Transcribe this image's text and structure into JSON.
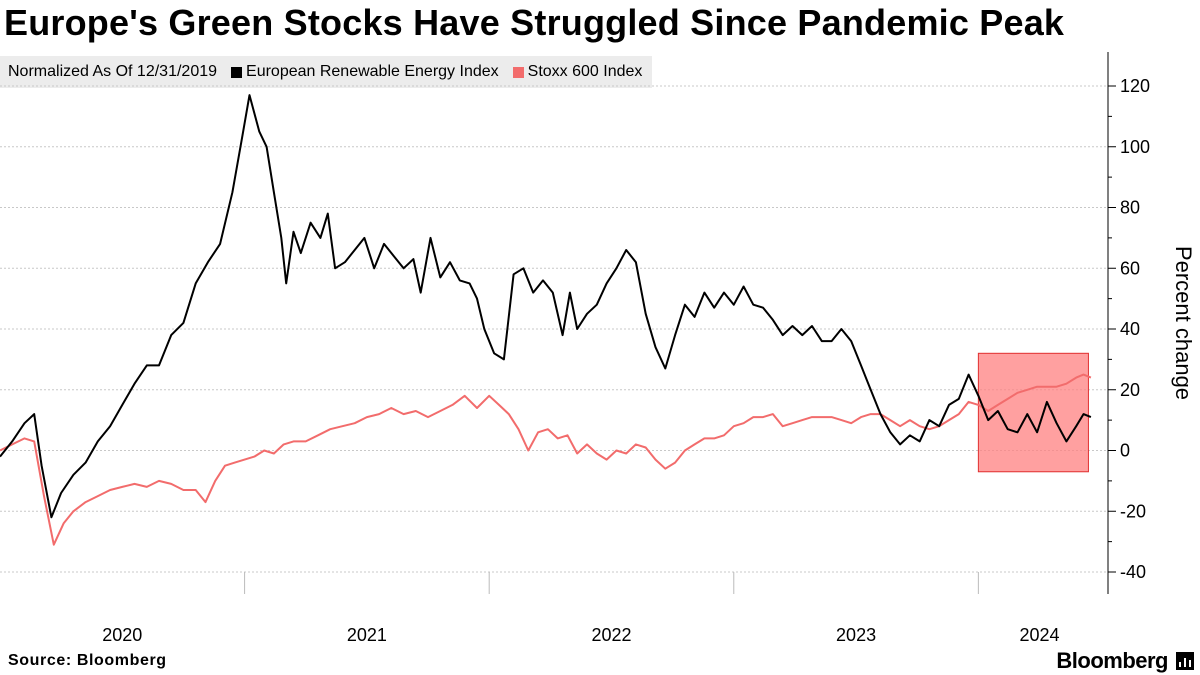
{
  "title": "Europe's Green Stocks Have Struggled Since Pandemic Peak",
  "legend": {
    "note": "Normalized As Of 12/31/2019",
    "items": [
      {
        "label": "European Renewable Energy Index",
        "color": "#000000"
      },
      {
        "label": "Stoxx 600 Index",
        "color": "#f26c6c"
      }
    ]
  },
  "source": "Source: Bloomberg",
  "brand": "Bloomberg",
  "brand_icon": "bloomberg-chart-icon",
  "chart_data": {
    "type": "line",
    "title": "Europe's Green Stocks Have Struggled Since Pandemic Peak",
    "xlabel": "",
    "ylabel": "Percent change",
    "ylim": [
      -40,
      130
    ],
    "yticks": [
      120,
      100,
      80,
      60,
      40,
      20,
      0,
      -20,
      -40
    ],
    "ytick_labels": [
      "120",
      "100",
      "80",
      "60",
      "40",
      "20",
      "0",
      "-20",
      "-40"
    ],
    "xlim": [
      2020.0,
      2024.53
    ],
    "year_boundaries": [
      2021,
      2022,
      2023,
      2024
    ],
    "xtick_labels": [
      {
        "label": "2020",
        "x": 2020.5
      },
      {
        "label": "2021",
        "x": 2021.5
      },
      {
        "label": "2022",
        "x": 2022.5
      },
      {
        "label": "2023",
        "x": 2023.5
      },
      {
        "label": "2024",
        "x": 2024.25
      }
    ],
    "highlight": {
      "x_start": 2024.0,
      "x_end": 2024.45,
      "y_start": -7,
      "y_end": 32,
      "color": "#ff8080"
    },
    "series": [
      {
        "name": "European Renewable Energy Index",
        "color": "#000000",
        "points": [
          [
            2020.0,
            -2
          ],
          [
            2020.05,
            3
          ],
          [
            2020.1,
            9
          ],
          [
            2020.14,
            12
          ],
          [
            2020.17,
            -5
          ],
          [
            2020.21,
            -22
          ],
          [
            2020.25,
            -14
          ],
          [
            2020.3,
            -8
          ],
          [
            2020.35,
            -4
          ],
          [
            2020.4,
            3
          ],
          [
            2020.45,
            8
          ],
          [
            2020.5,
            15
          ],
          [
            2020.55,
            22
          ],
          [
            2020.6,
            28
          ],
          [
            2020.65,
            28
          ],
          [
            2020.7,
            38
          ],
          [
            2020.75,
            42
          ],
          [
            2020.8,
            55
          ],
          [
            2020.85,
            62
          ],
          [
            2020.9,
            68
          ],
          [
            2020.95,
            85
          ],
          [
            2020.99,
            103
          ],
          [
            2021.02,
            117
          ],
          [
            2021.06,
            105
          ],
          [
            2021.09,
            100
          ],
          [
            2021.12,
            85
          ],
          [
            2021.15,
            70
          ],
          [
            2021.17,
            55
          ],
          [
            2021.2,
            72
          ],
          [
            2021.23,
            65
          ],
          [
            2021.27,
            75
          ],
          [
            2021.31,
            70
          ],
          [
            2021.34,
            78
          ],
          [
            2021.37,
            60
          ],
          [
            2021.41,
            62
          ],
          [
            2021.45,
            66
          ],
          [
            2021.49,
            70
          ],
          [
            2021.53,
            60
          ],
          [
            2021.57,
            68
          ],
          [
            2021.61,
            64
          ],
          [
            2021.65,
            60
          ],
          [
            2021.69,
            63
          ],
          [
            2021.72,
            52
          ],
          [
            2021.76,
            70
          ],
          [
            2021.8,
            57
          ],
          [
            2021.84,
            62
          ],
          [
            2021.88,
            56
          ],
          [
            2021.92,
            55
          ],
          [
            2021.95,
            50
          ],
          [
            2021.98,
            40
          ],
          [
            2022.02,
            32
          ],
          [
            2022.06,
            30
          ],
          [
            2022.1,
            58
          ],
          [
            2022.14,
            60
          ],
          [
            2022.18,
            52
          ],
          [
            2022.22,
            56
          ],
          [
            2022.26,
            52
          ],
          [
            2022.3,
            38
          ],
          [
            2022.33,
            52
          ],
          [
            2022.36,
            40
          ],
          [
            2022.4,
            45
          ],
          [
            2022.44,
            48
          ],
          [
            2022.48,
            55
          ],
          [
            2022.52,
            60
          ],
          [
            2022.56,
            66
          ],
          [
            2022.6,
            62
          ],
          [
            2022.64,
            45
          ],
          [
            2022.68,
            34
          ],
          [
            2022.72,
            27
          ],
          [
            2022.76,
            38
          ],
          [
            2022.8,
            48
          ],
          [
            2022.84,
            44
          ],
          [
            2022.88,
            52
          ],
          [
            2022.92,
            47
          ],
          [
            2022.96,
            52
          ],
          [
            2023.0,
            48
          ],
          [
            2023.04,
            54
          ],
          [
            2023.08,
            48
          ],
          [
            2023.12,
            47
          ],
          [
            2023.16,
            43
          ],
          [
            2023.2,
            38
          ],
          [
            2023.24,
            41
          ],
          [
            2023.28,
            38
          ],
          [
            2023.32,
            41
          ],
          [
            2023.36,
            36
          ],
          [
            2023.4,
            36
          ],
          [
            2023.44,
            40
          ],
          [
            2023.48,
            36
          ],
          [
            2023.52,
            28
          ],
          [
            2023.56,
            20
          ],
          [
            2023.6,
            12
          ],
          [
            2023.64,
            6
          ],
          [
            2023.68,
            2
          ],
          [
            2023.72,
            5
          ],
          [
            2023.76,
            3
          ],
          [
            2023.8,
            10
          ],
          [
            2023.84,
            8
          ],
          [
            2023.88,
            15
          ],
          [
            2023.92,
            17
          ],
          [
            2023.96,
            25
          ],
          [
            2024.0,
            18
          ],
          [
            2024.04,
            10
          ],
          [
            2024.08,
            13
          ],
          [
            2024.12,
            7
          ],
          [
            2024.16,
            6
          ],
          [
            2024.2,
            12
          ],
          [
            2024.24,
            6
          ],
          [
            2024.28,
            16
          ],
          [
            2024.32,
            9
          ],
          [
            2024.36,
            3
          ],
          [
            2024.4,
            8
          ],
          [
            2024.43,
            12
          ],
          [
            2024.46,
            11
          ]
        ]
      },
      {
        "name": "Stoxx 600 Index",
        "color": "#f26c6c",
        "points": [
          [
            2020.0,
            0
          ],
          [
            2020.05,
            2
          ],
          [
            2020.1,
            4
          ],
          [
            2020.14,
            3
          ],
          [
            2020.18,
            -15
          ],
          [
            2020.22,
            -31
          ],
          [
            2020.26,
            -24
          ],
          [
            2020.3,
            -20
          ],
          [
            2020.35,
            -17
          ],
          [
            2020.4,
            -15
          ],
          [
            2020.45,
            -13
          ],
          [
            2020.5,
            -12
          ],
          [
            2020.55,
            -11
          ],
          [
            2020.6,
            -12
          ],
          [
            2020.65,
            -10
          ],
          [
            2020.7,
            -11
          ],
          [
            2020.75,
            -13
          ],
          [
            2020.8,
            -13
          ],
          [
            2020.84,
            -17
          ],
          [
            2020.88,
            -10
          ],
          [
            2020.92,
            -5
          ],
          [
            2020.96,
            -4
          ],
          [
            2021.0,
            -3
          ],
          [
            2021.04,
            -2
          ],
          [
            2021.08,
            0
          ],
          [
            2021.12,
            -1
          ],
          [
            2021.16,
            2
          ],
          [
            2021.2,
            3
          ],
          [
            2021.25,
            3
          ],
          [
            2021.3,
            5
          ],
          [
            2021.35,
            7
          ],
          [
            2021.4,
            8
          ],
          [
            2021.45,
            9
          ],
          [
            2021.5,
            11
          ],
          [
            2021.55,
            12
          ],
          [
            2021.6,
            14
          ],
          [
            2021.65,
            12
          ],
          [
            2021.7,
            13
          ],
          [
            2021.75,
            11
          ],
          [
            2021.8,
            13
          ],
          [
            2021.85,
            15
          ],
          [
            2021.9,
            18
          ],
          [
            2021.95,
            14
          ],
          [
            2022.0,
            18
          ],
          [
            2022.04,
            15
          ],
          [
            2022.08,
            12
          ],
          [
            2022.12,
            7
          ],
          [
            2022.16,
            0
          ],
          [
            2022.2,
            6
          ],
          [
            2022.24,
            7
          ],
          [
            2022.28,
            4
          ],
          [
            2022.32,
            5
          ],
          [
            2022.36,
            -1
          ],
          [
            2022.4,
            2
          ],
          [
            2022.44,
            -1
          ],
          [
            2022.48,
            -3
          ],
          [
            2022.52,
            0
          ],
          [
            2022.56,
            -1
          ],
          [
            2022.6,
            2
          ],
          [
            2022.64,
            1
          ],
          [
            2022.68,
            -3
          ],
          [
            2022.72,
            -6
          ],
          [
            2022.76,
            -4
          ],
          [
            2022.8,
            0
          ],
          [
            2022.84,
            2
          ],
          [
            2022.88,
            4
          ],
          [
            2022.92,
            4
          ],
          [
            2022.96,
            5
          ],
          [
            2023.0,
            8
          ],
          [
            2023.04,
            9
          ],
          [
            2023.08,
            11
          ],
          [
            2023.12,
            11
          ],
          [
            2023.16,
            12
          ],
          [
            2023.2,
            8
          ],
          [
            2023.24,
            9
          ],
          [
            2023.28,
            10
          ],
          [
            2023.32,
            11
          ],
          [
            2023.36,
            11
          ],
          [
            2023.4,
            11
          ],
          [
            2023.44,
            10
          ],
          [
            2023.48,
            9
          ],
          [
            2023.52,
            11
          ],
          [
            2023.56,
            12
          ],
          [
            2023.6,
            12
          ],
          [
            2023.64,
            10
          ],
          [
            2023.68,
            8
          ],
          [
            2023.72,
            10
          ],
          [
            2023.76,
            8
          ],
          [
            2023.8,
            7
          ],
          [
            2023.84,
            8
          ],
          [
            2023.88,
            10
          ],
          [
            2023.92,
            12
          ],
          [
            2023.96,
            16
          ],
          [
            2024.0,
            15
          ],
          [
            2024.04,
            13
          ],
          [
            2024.08,
            15
          ],
          [
            2024.12,
            17
          ],
          [
            2024.16,
            19
          ],
          [
            2024.2,
            20
          ],
          [
            2024.24,
            21
          ],
          [
            2024.28,
            21
          ],
          [
            2024.32,
            21
          ],
          [
            2024.36,
            22
          ],
          [
            2024.4,
            24
          ],
          [
            2024.43,
            25
          ],
          [
            2024.46,
            24
          ]
        ]
      }
    ]
  }
}
